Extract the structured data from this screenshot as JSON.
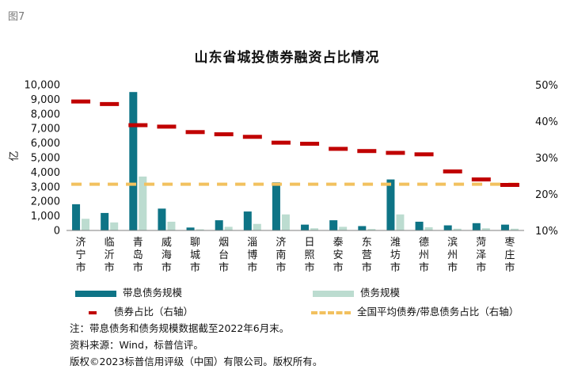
{
  "figure_label": "图7",
  "chart_data": {
    "type": "bar",
    "title": "山东省城投债券融资占比情况",
    "ylabel": "亿",
    "y2label": "",
    "xlabel": "",
    "ylim": [
      0,
      10000
    ],
    "y2lim": [
      0.1,
      0.5
    ],
    "yticks": [
      "0",
      "1,000",
      "2,000",
      "3,000",
      "4,000",
      "5,000",
      "6,000",
      "7,000",
      "8,000",
      "9,000",
      "10,000"
    ],
    "y2ticks": [
      "10%",
      "20%",
      "30%",
      "40%",
      "50%"
    ],
    "categories": [
      "济宁市",
      "临沂市",
      "青岛市",
      "威海市",
      "聊城市",
      "烟台市",
      "淄博市",
      "济南市",
      "日照市",
      "泰安市",
      "东营市",
      "潍坊市",
      "德州市",
      "滨州市",
      "菏泽市",
      "枣庄市"
    ],
    "series": [
      {
        "name": "带息债务规模",
        "kind": "bar",
        "axis": "left",
        "color": "#0e7486",
        "values": [
          1800,
          1200,
          9500,
          1500,
          200,
          700,
          1300,
          3300,
          400,
          700,
          300,
          3500,
          600,
          350,
          500,
          400
        ]
      },
      {
        "name": "债务规模",
        "kind": "bar",
        "axis": "left",
        "color": "#bcdcd0",
        "values": [
          800,
          550,
          3700,
          600,
          80,
          250,
          450,
          1100,
          150,
          250,
          100,
          1100,
          220,
          120,
          150,
          120
        ]
      },
      {
        "name": "债券占比（右轴）",
        "kind": "marker",
        "axis": "right",
        "color": "#c00000",
        "values": [
          0.454,
          0.447,
          0.389,
          0.385,
          0.37,
          0.364,
          0.357,
          0.341,
          0.338,
          0.324,
          0.318,
          0.313,
          0.309,
          0.262,
          0.24,
          0.225
        ]
      },
      {
        "name": "全国平均债券/带息债务占比（右轴）",
        "kind": "dashed-line",
        "axis": "right",
        "color": "#f2c15f",
        "value": 0.227
      }
    ],
    "legend_position": "bottom"
  },
  "notes": [
    "注：带息债务和债务规模数据截至2022年6月末。",
    "资料来源：Wind，标普信评。",
    "版权©2023标普信用评级（中国）有限公司。版权所有。"
  ]
}
